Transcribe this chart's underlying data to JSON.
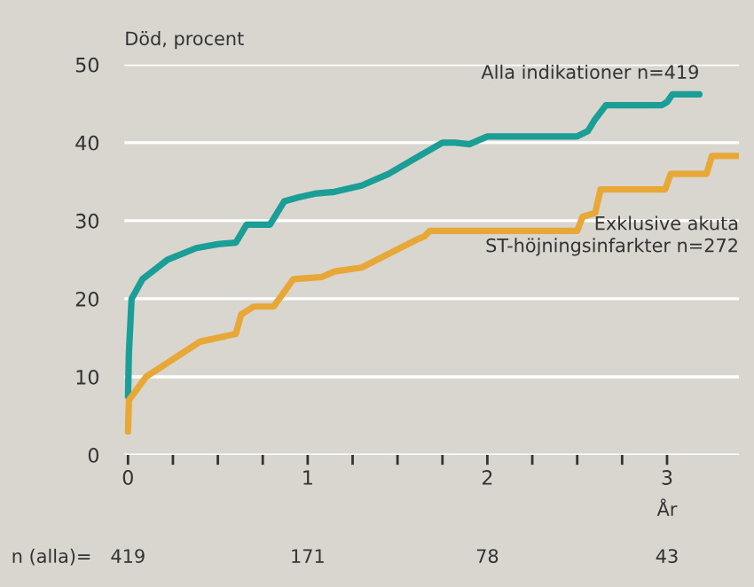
{
  "chart_data": {
    "type": "line",
    "ylabel": "Död, procent",
    "xlabel": "År",
    "xlim": [
      -0.02,
      3.4
    ],
    "ylim": [
      0,
      50
    ],
    "yticks": [
      0,
      10,
      20,
      30,
      40,
      50
    ],
    "xticks": [
      0,
      {
        "value": 0.25,
        "label": null
      },
      {
        "value": 0.5,
        "label": null
      },
      {
        "value": 0.75,
        "label": null
      },
      1,
      {
        "value": 1.25,
        "label": null
      },
      {
        "value": 1.5,
        "label": null
      },
      {
        "value": 1.75,
        "label": null
      },
      2,
      {
        "value": 2.25,
        "label": null
      },
      {
        "value": 2.5,
        "label": null
      },
      {
        "value": 2.75,
        "label": null
      },
      3
    ],
    "grid": "y",
    "legend": false,
    "line_style": "solid",
    "marker": "none",
    "series": [
      {
        "name": "Alla indikationer n=419",
        "color": "#1a9e96",
        "x": [
          0,
          0.005,
          0.02,
          0.08,
          0.22,
          0.38,
          0.5,
          0.6,
          0.66,
          0.79,
          0.87,
          0.95,
          1.05,
          1.15,
          1.3,
          1.45,
          1.6,
          1.75,
          1.82,
          1.9,
          2.0,
          2.5,
          2.56,
          2.6,
          2.66,
          2.97,
          3.0,
          3.03,
          3.18
        ],
        "values": [
          7.5,
          13,
          20,
          22.5,
          25,
          26.5,
          27,
          27.2,
          29.5,
          29.5,
          32.5,
          33,
          33.5,
          33.7,
          34.5,
          36,
          38,
          40,
          40,
          39.8,
          40.8,
          40.8,
          41.5,
          43,
          44.8,
          44.8,
          45.2,
          46.2,
          46.2
        ]
      },
      {
        "name": "Exklusive akuta\nST-höjningsinfarkter n=272",
        "color": "#e8a838",
        "x": [
          0,
          0.005,
          0.1,
          0.4,
          0.6,
          0.63,
          0.7,
          0.81,
          0.92,
          1.08,
          1.15,
          1.3,
          1.6,
          1.65,
          1.68,
          2.5,
          2.53,
          2.6,
          2.63,
          2.99,
          3.02,
          3.22,
          3.25,
          3.4
        ],
        "values": [
          3,
          7,
          10,
          14.5,
          15.5,
          18,
          19,
          19,
          22.5,
          22.8,
          23.5,
          24,
          27.5,
          28,
          28.7,
          28.7,
          30.5,
          31,
          34,
          34,
          36,
          36,
          38.3,
          38.3
        ]
      }
    ],
    "annotations": [
      "n (alla)=",
      "419",
      "171",
      "78",
      "43"
    ]
  }
}
